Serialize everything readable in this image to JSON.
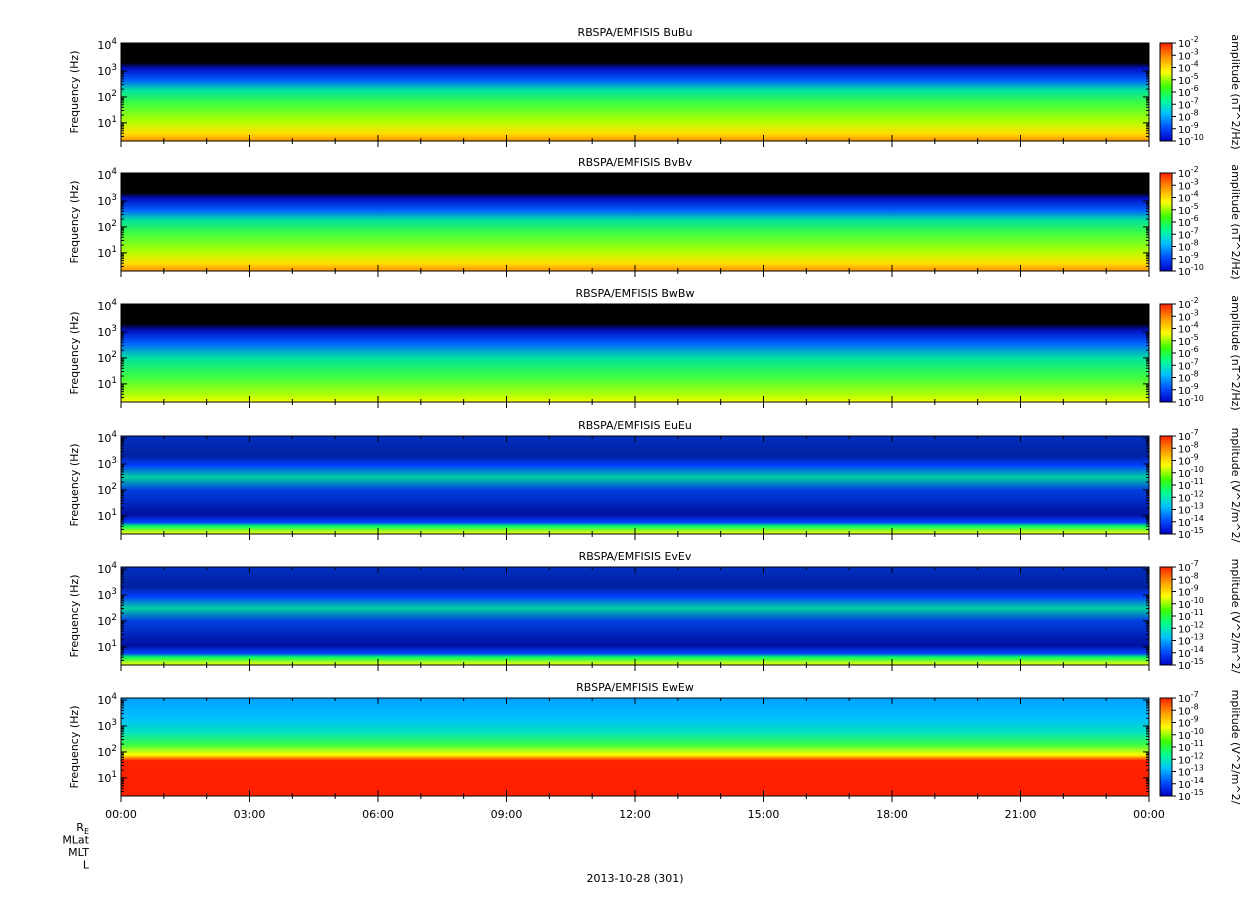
{
  "chart_data": [
    {
      "type": "heatmap",
      "title": "RBSPA/EMFISIS  BuBu",
      "ylabel": "Frequency (Hz)",
      "yscale": "log",
      "ylim": [
        2,
        12000
      ],
      "yticks": [
        {
          "value": 10,
          "label": "10",
          "exp": "1"
        },
        {
          "value": 100,
          "label": "10",
          "exp": "2"
        },
        {
          "value": 1000,
          "label": "10",
          "exp": "3"
        },
        {
          "value": 10000,
          "label": "10",
          "exp": "4"
        }
      ],
      "colorbar": {
        "label": "amplitude (nT^2/Hz)",
        "scale": "log",
        "range": [
          1e-10,
          0.01
        ],
        "ticks": [
          {
            "label": "10",
            "exp": "-2"
          },
          {
            "label": "10",
            "exp": "-3"
          },
          {
            "label": "10",
            "exp": "-4"
          },
          {
            "label": "10",
            "exp": "-5"
          },
          {
            "label": "10",
            "exp": "-6"
          },
          {
            "label": "10",
            "exp": "-7"
          },
          {
            "label": "10",
            "exp": "-8"
          },
          {
            "label": "10",
            "exp": "-9"
          },
          {
            "label": "10",
            "exp": "-10"
          }
        ]
      }
    },
    {
      "type": "heatmap",
      "title": "RBSPA/EMFISIS  BvBv",
      "ylabel": "Frequency (Hz)",
      "yscale": "log",
      "ylim": [
        2,
        12000
      ],
      "yticks": [
        {
          "value": 10,
          "label": "10",
          "exp": "1"
        },
        {
          "value": 100,
          "label": "10",
          "exp": "2"
        },
        {
          "value": 1000,
          "label": "10",
          "exp": "3"
        },
        {
          "value": 10000,
          "label": "10",
          "exp": "4"
        }
      ],
      "colorbar": {
        "label": "amplitude (nT^2/Hz)",
        "scale": "log",
        "range": [
          1e-10,
          0.01
        ],
        "ticks": [
          {
            "label": "10",
            "exp": "-2"
          },
          {
            "label": "10",
            "exp": "-3"
          },
          {
            "label": "10",
            "exp": "-4"
          },
          {
            "label": "10",
            "exp": "-5"
          },
          {
            "label": "10",
            "exp": "-6"
          },
          {
            "label": "10",
            "exp": "-7"
          },
          {
            "label": "10",
            "exp": "-8"
          },
          {
            "label": "10",
            "exp": "-9"
          },
          {
            "label": "10",
            "exp": "-10"
          }
        ]
      }
    },
    {
      "type": "heatmap",
      "title": "RBSPA/EMFISIS  BwBw",
      "ylabel": "Frequency (Hz)",
      "yscale": "log",
      "ylim": [
        2,
        12000
      ],
      "yticks": [
        {
          "value": 10,
          "label": "10",
          "exp": "1"
        },
        {
          "value": 100,
          "label": "10",
          "exp": "2"
        },
        {
          "value": 1000,
          "label": "10",
          "exp": "3"
        },
        {
          "value": 10000,
          "label": "10",
          "exp": "4"
        }
      ],
      "colorbar": {
        "label": "amplitude (nT^2/Hz)",
        "scale": "log",
        "range": [
          1e-10,
          0.01
        ],
        "ticks": [
          {
            "label": "10",
            "exp": "-2"
          },
          {
            "label": "10",
            "exp": "-3"
          },
          {
            "label": "10",
            "exp": "-4"
          },
          {
            "label": "10",
            "exp": "-5"
          },
          {
            "label": "10",
            "exp": "-6"
          },
          {
            "label": "10",
            "exp": "-7"
          },
          {
            "label": "10",
            "exp": "-8"
          },
          {
            "label": "10",
            "exp": "-9"
          },
          {
            "label": "10",
            "exp": "-10"
          }
        ]
      }
    },
    {
      "type": "heatmap",
      "title": "RBSPA/EMFISIS  EuEu",
      "ylabel": "Frequency (Hz)",
      "yscale": "log",
      "ylim": [
        2,
        12000
      ],
      "yticks": [
        {
          "value": 10,
          "label": "10",
          "exp": "1"
        },
        {
          "value": 100,
          "label": "10",
          "exp": "2"
        },
        {
          "value": 1000,
          "label": "10",
          "exp": "3"
        },
        {
          "value": 10000,
          "label": "10",
          "exp": "4"
        }
      ],
      "colorbar": {
        "label": "mplitude (V^2/m^2/",
        "scale": "log",
        "range": [
          1e-15,
          1e-07
        ],
        "ticks": [
          {
            "label": "10",
            "exp": "-7"
          },
          {
            "label": "10",
            "exp": "-8"
          },
          {
            "label": "10",
            "exp": "-9"
          },
          {
            "label": "10",
            "exp": "-10"
          },
          {
            "label": "10",
            "exp": "-11"
          },
          {
            "label": "10",
            "exp": "-12"
          },
          {
            "label": "10",
            "exp": "-13"
          },
          {
            "label": "10",
            "exp": "-14"
          },
          {
            "label": "10",
            "exp": "-15"
          }
        ]
      }
    },
    {
      "type": "heatmap",
      "title": "RBSPA/EMFISIS  EvEv",
      "ylabel": "Frequency (Hz)",
      "yscale": "log",
      "ylim": [
        2,
        12000
      ],
      "yticks": [
        {
          "value": 10,
          "label": "10",
          "exp": "1"
        },
        {
          "value": 100,
          "label": "10",
          "exp": "2"
        },
        {
          "value": 1000,
          "label": "10",
          "exp": "3"
        },
        {
          "value": 10000,
          "label": "10",
          "exp": "4"
        }
      ],
      "colorbar": {
        "label": "mplitude (V^2/m^2/",
        "scale": "log",
        "range": [
          1e-15,
          1e-07
        ],
        "ticks": [
          {
            "label": "10",
            "exp": "-7"
          },
          {
            "label": "10",
            "exp": "-8"
          },
          {
            "label": "10",
            "exp": "-9"
          },
          {
            "label": "10",
            "exp": "-10"
          },
          {
            "label": "10",
            "exp": "-11"
          },
          {
            "label": "10",
            "exp": "-12"
          },
          {
            "label": "10",
            "exp": "-13"
          },
          {
            "label": "10",
            "exp": "-14"
          },
          {
            "label": "10",
            "exp": "-15"
          }
        ]
      }
    },
    {
      "type": "heatmap",
      "title": "RBSPA/EMFISIS  EwEw",
      "ylabel": "Frequency (Hz)",
      "yscale": "log",
      "ylim": [
        2,
        12000
      ],
      "yticks": [
        {
          "value": 10,
          "label": "10",
          "exp": "1"
        },
        {
          "value": 100,
          "label": "10",
          "exp": "2"
        },
        {
          "value": 1000,
          "label": "10",
          "exp": "3"
        },
        {
          "value": 10000,
          "label": "10",
          "exp": "4"
        }
      ],
      "colorbar": {
        "label": "mplitude (V^2/m^2/",
        "scale": "log",
        "range": [
          1e-15,
          1e-07
        ],
        "ticks": [
          {
            "label": "10",
            "exp": "-7"
          },
          {
            "label": "10",
            "exp": "-8"
          },
          {
            "label": "10",
            "exp": "-9"
          },
          {
            "label": "10",
            "exp": "-10"
          },
          {
            "label": "10",
            "exp": "-11"
          },
          {
            "label": "10",
            "exp": "-12"
          },
          {
            "label": "10",
            "exp": "-13"
          },
          {
            "label": "10",
            "exp": "-14"
          },
          {
            "label": "10",
            "exp": "-15"
          }
        ]
      }
    }
  ],
  "x_axis": {
    "range_hours": [
      0,
      24
    ],
    "tick_labels": [
      "00:00",
      "03:00",
      "06:00",
      "09:00",
      "12:00",
      "15:00",
      "18:00",
      "21:00",
      "00:00"
    ],
    "tick_hours": [
      0,
      3,
      6,
      9,
      12,
      15,
      18,
      21,
      24
    ],
    "minor_step_hours": 1,
    "ephemeris_labels": [
      {
        "label": "R",
        "sub": "E"
      },
      {
        "label": "MLat",
        "sub": ""
      },
      {
        "label": "MLT",
        "sub": ""
      },
      {
        "label": "L",
        "sub": ""
      }
    ],
    "date_label": "2013-10-28 (301)"
  },
  "colors": {
    "background": "#000000",
    "colormap": [
      "#0000c8",
      "#0050ff",
      "#00c0ff",
      "#00ff90",
      "#40ff00",
      "#ffff00",
      "#ffa000",
      "#ff2000"
    ]
  }
}
